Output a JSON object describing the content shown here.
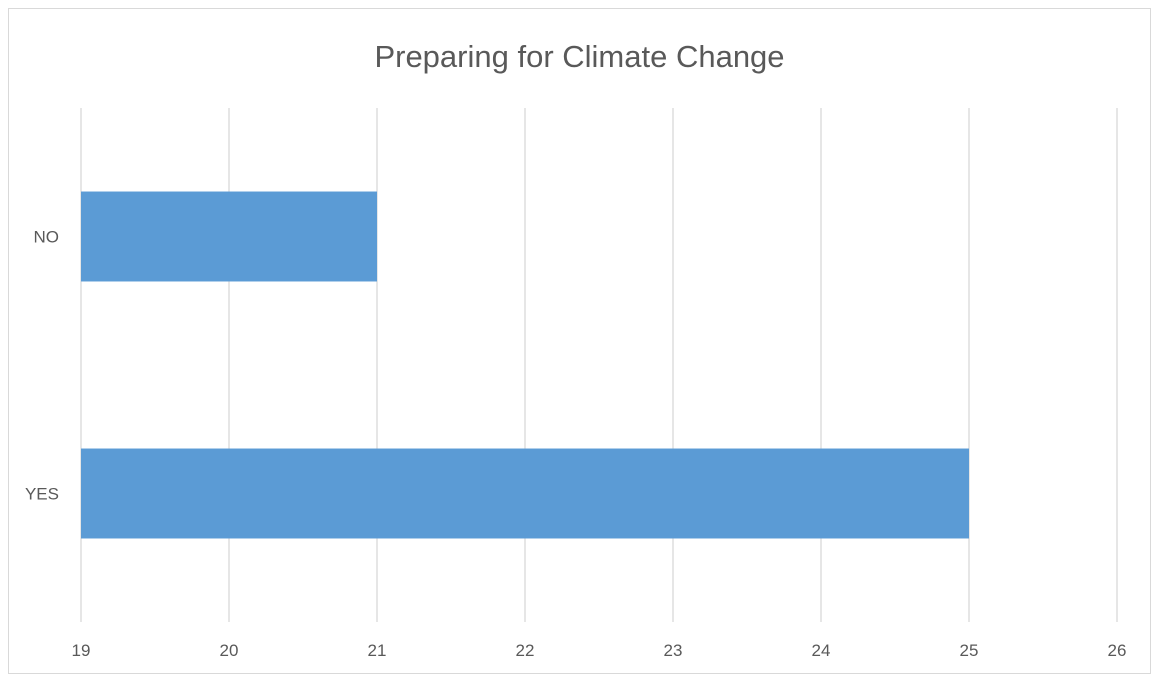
{
  "chart_data": {
    "type": "bar",
    "orientation": "horizontal",
    "title": "Preparing for Climate Change",
    "categories": [
      "YES",
      "NO"
    ],
    "values": [
      25,
      21
    ],
    "xlabel": "",
    "ylabel": "",
    "xlim": [
      19,
      26
    ],
    "xticks": [
      19,
      20,
      21,
      22,
      23,
      24,
      25,
      26
    ],
    "grid": true,
    "legend": "none",
    "bar_color": "#5b9bd5",
    "grid_color": "#d9d9d9"
  }
}
